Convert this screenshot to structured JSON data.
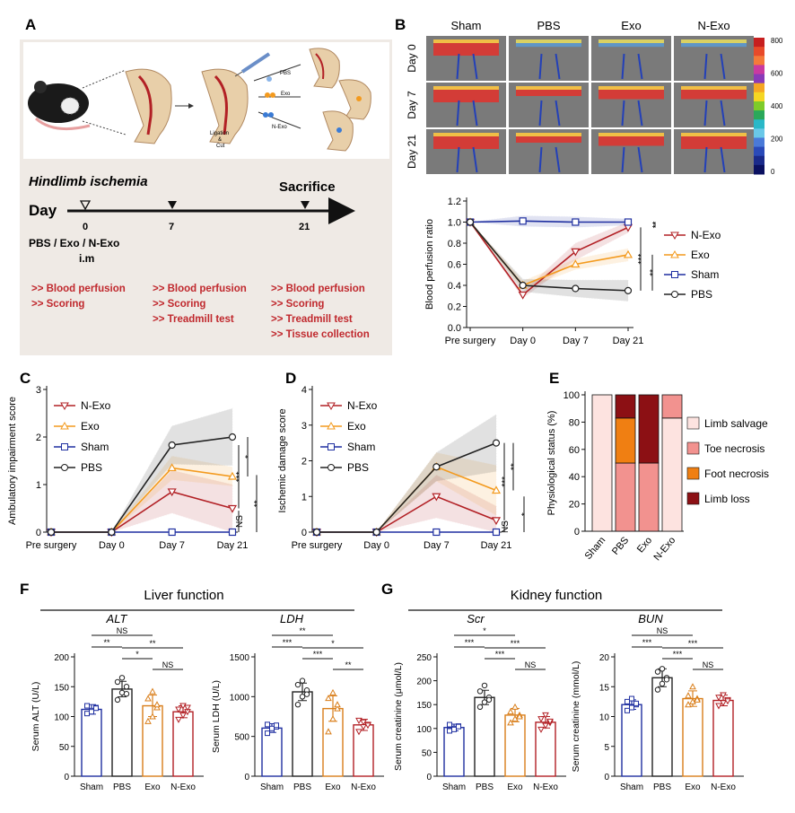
{
  "panels": {
    "A": "A",
    "B": "B",
    "C": "C",
    "D": "D",
    "E": "E",
    "F": "F",
    "G": "G"
  },
  "panelA": {
    "title": "Hindlimb ischemia",
    "day_label": "Day",
    "sacrifice": "Sacrifice",
    "days": [
      "0",
      "7",
      "21"
    ],
    "groups_label": "PBS / Exo / N-Exo",
    "route": "i.m",
    "ligation": "Ligation",
    "amp": "&",
    "cut": "Cut",
    "treatments": [
      "PBS",
      "Exo",
      "N-Exo"
    ],
    "col0": [
      ">> Blood perfusion",
      ">> Scoring"
    ],
    "col7": [
      ">> Blood perfusion",
      ">> Scoring",
      ">> Treadmill test"
    ],
    "col21": [
      ">> Blood perfusion",
      ">> Scoring",
      ">> Treadmill test",
      ">> Tissue collection"
    ]
  },
  "panelB": {
    "cols": [
      "Sham",
      "PBS",
      "Exo",
      "N-Exo"
    ],
    "rows": [
      "Day 0",
      "Day 7",
      "Day 21"
    ],
    "scale_ticks": [
      "800",
      "600",
      "400",
      "200",
      "0"
    ],
    "colors": {
      "red": "#b22025",
      "orange": "#f39a1e",
      "blue": "#1f2fa0",
      "black": "#222222"
    }
  },
  "chart_data": [
    {
      "type": "line",
      "panel": "B",
      "ylabel": "Blood perfusion ratio",
      "categories": [
        "Pre surgery",
        "Day 0",
        "Day 7",
        "Day 21"
      ],
      "ylim": [
        0,
        1.2
      ],
      "yticks": [
        "0.0",
        "0.2",
        "0.4",
        "0.6",
        "0.8",
        "1.0",
        "1.2"
      ],
      "series": [
        {
          "name": "N-Exo",
          "values": [
            1.0,
            0.31,
            0.72,
            0.95
          ]
        },
        {
          "name": "Exo",
          "values": [
            1.0,
            0.4,
            0.6,
            0.69
          ]
        },
        {
          "name": "Sham",
          "values": [
            1.0,
            1.01,
            1.0,
            1.0
          ]
        },
        {
          "name": "PBS",
          "values": [
            1.0,
            0.4,
            0.37,
            0.35
          ]
        }
      ],
      "significance": [
        "**",
        "***",
        "**"
      ]
    },
    {
      "type": "line",
      "panel": "C",
      "ylabel": "Ambulatory impairment score",
      "categories": [
        "Pre surgery",
        "Day 0",
        "Day 7",
        "Day 21"
      ],
      "ylim": [
        0,
        3
      ],
      "yticks": [
        "0",
        "1",
        "2",
        "3"
      ],
      "series": [
        {
          "name": "N-Exo",
          "values": [
            0,
            0,
            0.85,
            0.5
          ]
        },
        {
          "name": "Exo",
          "values": [
            0,
            0,
            1.35,
            1.17
          ]
        },
        {
          "name": "Sham",
          "values": [
            0,
            0,
            0,
            0
          ]
        },
        {
          "name": "PBS",
          "values": [
            0,
            0,
            1.83,
            2.0
          ]
        }
      ],
      "significance": [
        "*",
        "***",
        "NS",
        "**"
      ]
    },
    {
      "type": "line",
      "panel": "D",
      "ylabel": "Ischemic damage score",
      "categories": [
        "Pre surgery",
        "Day 0",
        "Day 7",
        "Day 21"
      ],
      "ylim": [
        0,
        4
      ],
      "yticks": [
        "0",
        "1",
        "2",
        "3",
        "4"
      ],
      "series": [
        {
          "name": "N-Exo",
          "values": [
            0,
            0,
            1.0,
            0.33
          ]
        },
        {
          "name": "Exo",
          "values": [
            0,
            0,
            1.83,
            1.17
          ]
        },
        {
          "name": "Sham",
          "values": [
            0,
            0,
            0,
            0
          ]
        },
        {
          "name": "PBS",
          "values": [
            0,
            0,
            1.83,
            2.5
          ]
        }
      ],
      "significance": [
        "**",
        "***",
        "NS",
        "*"
      ]
    },
    {
      "type": "bar",
      "panel": "E",
      "stacked": true,
      "ylabel": "Physiological status (%)",
      "categories": [
        "Sham",
        "PBS",
        "Exo",
        "N-Exo"
      ],
      "ylim": [
        0,
        100
      ],
      "yticks": [
        "0",
        "20",
        "40",
        "60",
        "80",
        "100"
      ],
      "series": [
        {
          "name": "Limb salvage",
          "values": [
            100,
            0,
            0,
            83
          ]
        },
        {
          "name": "Toe necrosis",
          "values": [
            0,
            50,
            50,
            17
          ]
        },
        {
          "name": "Foot necrosis",
          "values": [
            0,
            33,
            0,
            0
          ]
        },
        {
          "name": "Limb loss",
          "values": [
            0,
            17,
            50,
            0
          ]
        }
      ]
    },
    {
      "type": "bar",
      "panel": "F",
      "title": "ALT",
      "ylabel": "Serum ALT (U/L)",
      "categories": [
        "Sham",
        "PBS",
        "Exo",
        "N-Exo"
      ],
      "values": [
        112,
        146,
        118,
        108
      ],
      "errors": [
        8,
        13,
        18,
        10
      ],
      "ylim": [
        0,
        200
      ],
      "yticks": [
        "0",
        "50",
        "100",
        "150",
        "200"
      ],
      "points": [
        [
          105,
          110,
          115,
          118,
          108,
          114
        ],
        [
          128,
          140,
          150,
          158,
          165,
          138
        ],
        [
          92,
          100,
          115,
          130,
          142,
          120
        ],
        [
          95,
          102,
          108,
          112,
          118,
          115
        ]
      ],
      "significance": [
        "NS",
        "**",
        "*",
        "**",
        "NS"
      ]
    },
    {
      "type": "bar",
      "panel": "F",
      "title": "LDH",
      "ylabel": "Serum LDH (U/L)",
      "categories": [
        "Sham",
        "PBS",
        "Exo",
        "N-Exo"
      ],
      "values": [
        605,
        1060,
        850,
        645
      ],
      "errors": [
        55,
        110,
        160,
        70
      ],
      "ylim": [
        0,
        1500
      ],
      "yticks": [
        "0",
        "500",
        "1000",
        "1500"
      ],
      "points": [
        [
          540,
          580,
          620,
          650,
          600,
          640
        ],
        [
          900,
          1000,
          1080,
          1150,
          1200,
          1030
        ],
        [
          560,
          720,
          850,
          980,
          1050,
          900
        ],
        [
          560,
          620,
          650,
          700,
          680,
          640
        ]
      ],
      "significance": [
        "**",
        "***",
        "***",
        "*",
        "**"
      ]
    },
    {
      "type": "bar",
      "panel": "G",
      "title": "Scr",
      "ylabel": "Serum creatinine  (μmol/L)",
      "categories": [
        "Sham",
        "PBS",
        "Exo",
        "N-Exo"
      ],
      "values": [
        102,
        165,
        128,
        113
      ],
      "errors": [
        7,
        15,
        14,
        12
      ],
      "ylim": [
        0,
        250
      ],
      "yticks": [
        "0",
        "50",
        "100",
        "150",
        "200",
        "250"
      ],
      "points": [
        [
          95,
          100,
          105,
          108,
          98,
          104
        ],
        [
          145,
          155,
          165,
          178,
          190,
          160
        ],
        [
          112,
          120,
          128,
          135,
          145,
          125
        ],
        [
          98,
          106,
          112,
          120,
          128,
          115
        ]
      ],
      "significance": [
        "*",
        "***",
        "***",
        "***",
        "NS"
      ]
    },
    {
      "type": "bar",
      "panel": "G",
      "title": "BUN",
      "ylabel": "Serum creatinine  (mmol/L)",
      "categories": [
        "Sham",
        "PBS",
        "Exo",
        "N-Exo"
      ],
      "values": [
        12,
        16.5,
        13,
        12.7
      ],
      "errors": [
        0.8,
        1.5,
        1.3,
        0.9
      ],
      "ylim": [
        0,
        20
      ],
      "yticks": [
        "0",
        "5",
        "10",
        "15",
        "20"
      ],
      "points": [
        [
          11,
          11.5,
          12,
          12.5,
          13,
          12.2
        ],
        [
          14.5,
          15.5,
          16.5,
          17.5,
          18,
          16.2
        ],
        [
          12,
          12.5,
          13,
          13.5,
          15,
          12.8
        ],
        [
          11.8,
          12.3,
          12.8,
          13.2,
          13.6,
          12.6
        ]
      ],
      "significance": [
        "NS",
        "***",
        "***",
        "***",
        "NS"
      ]
    }
  ],
  "panelF": {
    "header": "Liver function"
  },
  "panelG": {
    "header": "Kidney function"
  }
}
